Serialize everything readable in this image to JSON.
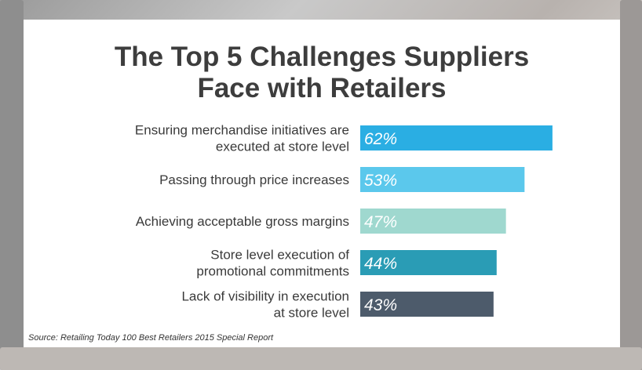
{
  "chart_data": {
    "type": "bar",
    "orientation": "horizontal",
    "title": [
      "The Top 5 Challenges Suppliers",
      "Face with Retailers"
    ],
    "categories": [
      [
        "Ensuring merchandise initiatives are",
        "executed at store level"
      ],
      [
        "Passing through price increases"
      ],
      [
        "Achieving acceptable gross margins"
      ],
      [
        "Store level execution of",
        "promotional commitments"
      ],
      [
        "Lack of visibility in execution",
        "at store level"
      ]
    ],
    "values": [
      62,
      53,
      47,
      44,
      43
    ],
    "value_labels": [
      "62%",
      "53%",
      "47%",
      "44%",
      "43%"
    ],
    "colors": [
      "#2aaee3",
      "#5bc8ec",
      "#9fd8cf",
      "#2a9cb5",
      "#4d5b6b"
    ],
    "xlim": [
      0,
      100
    ],
    "grid": false,
    "legend": "none"
  },
  "source": "Source: Retailing Today 100 Best Retailers 2015 Special Report"
}
